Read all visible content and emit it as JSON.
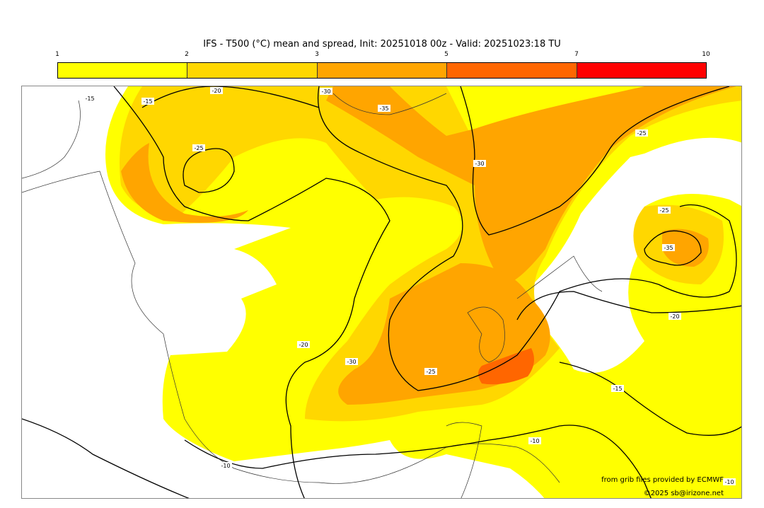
{
  "title": "IFS - T500 (°C) mean and spread, Init: 20251018 00z - Valid: 20251023:18 TU",
  "legend": {
    "ticks": [
      "1",
      "2",
      "3",
      "5",
      "7",
      "10"
    ],
    "colors": [
      "#ffff00",
      "#ffd700",
      "#ffa500",
      "#ff6600",
      "#ff0000"
    ]
  },
  "contour_labels": [
    "-15",
    "-20",
    "-25",
    "-30",
    "-35",
    "-30",
    "-25",
    "-20",
    "-25",
    "-15",
    "-10",
    "-10",
    "-25",
    "-30",
    "-35",
    "-20",
    "-15",
    "-10"
  ],
  "credits": {
    "source": "from grib files provided by ECMWF",
    "copyright": "©2025 sb@irizone.net"
  }
}
